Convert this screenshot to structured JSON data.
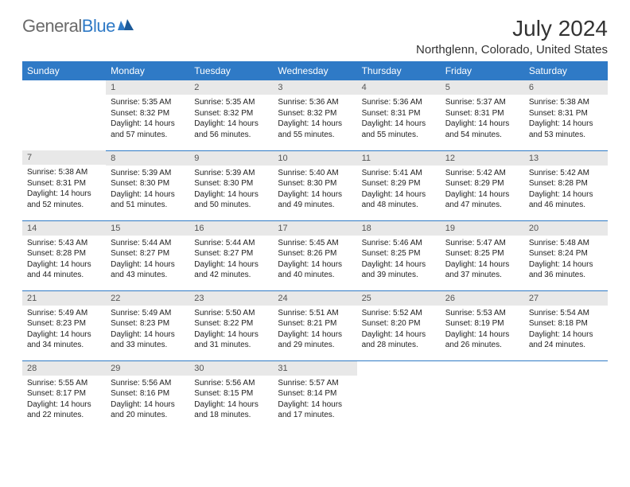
{
  "logo": {
    "part1": "General",
    "part2": "Blue"
  },
  "title": "July 2024",
  "location": "Northglenn, Colorado, United States",
  "colors": {
    "header_bg": "#2f7ac6",
    "header_text": "#ffffff",
    "daynum_bg": "#e8e8e8",
    "daynum_text": "#555555",
    "body_text": "#222222",
    "row_border": "#2f7ac6",
    "logo_general": "#6a6a6a",
    "logo_blue": "#2f7ac6"
  },
  "days_of_week": [
    "Sunday",
    "Monday",
    "Tuesday",
    "Wednesday",
    "Thursday",
    "Friday",
    "Saturday"
  ],
  "weeks": [
    [
      null,
      {
        "num": "1",
        "sunrise": "5:35 AM",
        "sunset": "8:32 PM",
        "daylight": "14 hours and 57 minutes."
      },
      {
        "num": "2",
        "sunrise": "5:35 AM",
        "sunset": "8:32 PM",
        "daylight": "14 hours and 56 minutes."
      },
      {
        "num": "3",
        "sunrise": "5:36 AM",
        "sunset": "8:32 PM",
        "daylight": "14 hours and 55 minutes."
      },
      {
        "num": "4",
        "sunrise": "5:36 AM",
        "sunset": "8:31 PM",
        "daylight": "14 hours and 55 minutes."
      },
      {
        "num": "5",
        "sunrise": "5:37 AM",
        "sunset": "8:31 PM",
        "daylight": "14 hours and 54 minutes."
      },
      {
        "num": "6",
        "sunrise": "5:38 AM",
        "sunset": "8:31 PM",
        "daylight": "14 hours and 53 minutes."
      }
    ],
    [
      {
        "num": "7",
        "sunrise": "5:38 AM",
        "sunset": "8:31 PM",
        "daylight": "14 hours and 52 minutes."
      },
      {
        "num": "8",
        "sunrise": "5:39 AM",
        "sunset": "8:30 PM",
        "daylight": "14 hours and 51 minutes."
      },
      {
        "num": "9",
        "sunrise": "5:39 AM",
        "sunset": "8:30 PM",
        "daylight": "14 hours and 50 minutes."
      },
      {
        "num": "10",
        "sunrise": "5:40 AM",
        "sunset": "8:30 PM",
        "daylight": "14 hours and 49 minutes."
      },
      {
        "num": "11",
        "sunrise": "5:41 AM",
        "sunset": "8:29 PM",
        "daylight": "14 hours and 48 minutes."
      },
      {
        "num": "12",
        "sunrise": "5:42 AM",
        "sunset": "8:29 PM",
        "daylight": "14 hours and 47 minutes."
      },
      {
        "num": "13",
        "sunrise": "5:42 AM",
        "sunset": "8:28 PM",
        "daylight": "14 hours and 46 minutes."
      }
    ],
    [
      {
        "num": "14",
        "sunrise": "5:43 AM",
        "sunset": "8:28 PM",
        "daylight": "14 hours and 44 minutes."
      },
      {
        "num": "15",
        "sunrise": "5:44 AM",
        "sunset": "8:27 PM",
        "daylight": "14 hours and 43 minutes."
      },
      {
        "num": "16",
        "sunrise": "5:44 AM",
        "sunset": "8:27 PM",
        "daylight": "14 hours and 42 minutes."
      },
      {
        "num": "17",
        "sunrise": "5:45 AM",
        "sunset": "8:26 PM",
        "daylight": "14 hours and 40 minutes."
      },
      {
        "num": "18",
        "sunrise": "5:46 AM",
        "sunset": "8:25 PM",
        "daylight": "14 hours and 39 minutes."
      },
      {
        "num": "19",
        "sunrise": "5:47 AM",
        "sunset": "8:25 PM",
        "daylight": "14 hours and 37 minutes."
      },
      {
        "num": "20",
        "sunrise": "5:48 AM",
        "sunset": "8:24 PM",
        "daylight": "14 hours and 36 minutes."
      }
    ],
    [
      {
        "num": "21",
        "sunrise": "5:49 AM",
        "sunset": "8:23 PM",
        "daylight": "14 hours and 34 minutes."
      },
      {
        "num": "22",
        "sunrise": "5:49 AM",
        "sunset": "8:23 PM",
        "daylight": "14 hours and 33 minutes."
      },
      {
        "num": "23",
        "sunrise": "5:50 AM",
        "sunset": "8:22 PM",
        "daylight": "14 hours and 31 minutes."
      },
      {
        "num": "24",
        "sunrise": "5:51 AM",
        "sunset": "8:21 PM",
        "daylight": "14 hours and 29 minutes."
      },
      {
        "num": "25",
        "sunrise": "5:52 AM",
        "sunset": "8:20 PM",
        "daylight": "14 hours and 28 minutes."
      },
      {
        "num": "26",
        "sunrise": "5:53 AM",
        "sunset": "8:19 PM",
        "daylight": "14 hours and 26 minutes."
      },
      {
        "num": "27",
        "sunrise": "5:54 AM",
        "sunset": "8:18 PM",
        "daylight": "14 hours and 24 minutes."
      }
    ],
    [
      {
        "num": "28",
        "sunrise": "5:55 AM",
        "sunset": "8:17 PM",
        "daylight": "14 hours and 22 minutes."
      },
      {
        "num": "29",
        "sunrise": "5:56 AM",
        "sunset": "8:16 PM",
        "daylight": "14 hours and 20 minutes."
      },
      {
        "num": "30",
        "sunrise": "5:56 AM",
        "sunset": "8:15 PM",
        "daylight": "14 hours and 18 minutes."
      },
      {
        "num": "31",
        "sunrise": "5:57 AM",
        "sunset": "8:14 PM",
        "daylight": "14 hours and 17 minutes."
      },
      null,
      null,
      null
    ]
  ]
}
